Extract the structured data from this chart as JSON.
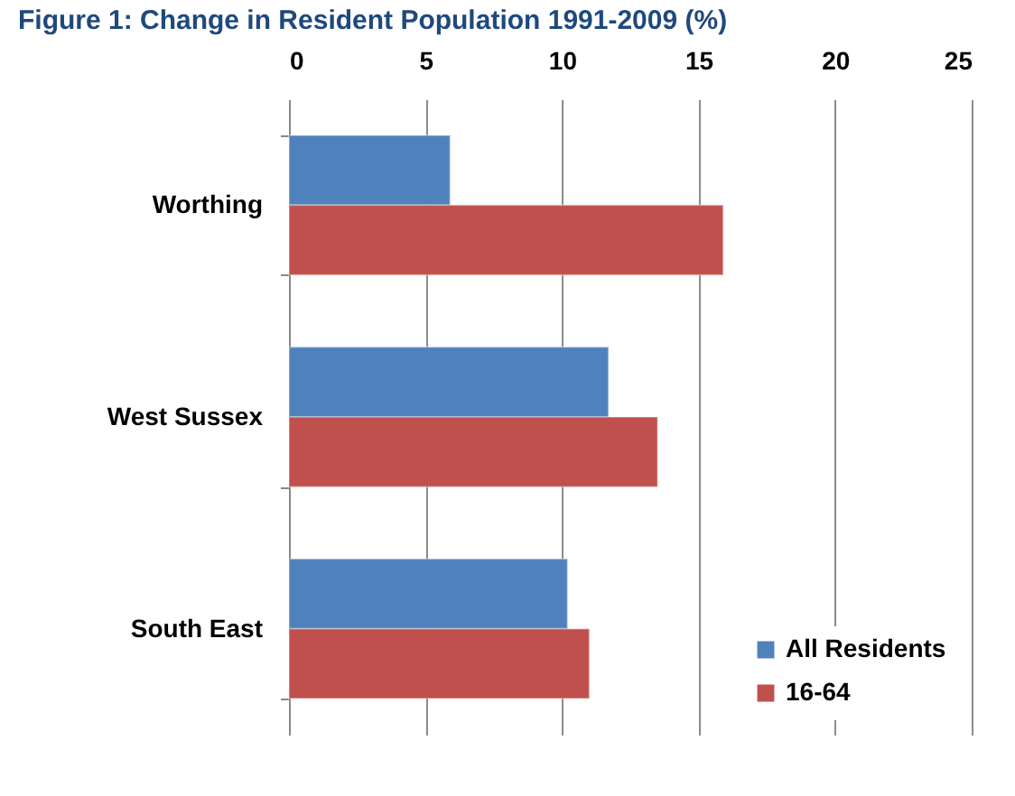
{
  "chart_data": {
    "type": "bar",
    "orientation": "horizontal",
    "title": "Figure 1: Change in Resident Population 1991-2009 (%)",
    "categories": [
      "Worthing",
      "West Sussex",
      "South East"
    ],
    "series": [
      {
        "name": "All Residents",
        "color": "#4f81bd",
        "values": [
          5.9,
          11.7,
          10.2
        ]
      },
      {
        "name": "16-64",
        "color": "#c0504d",
        "values": [
          15.9,
          13.5,
          11.0
        ]
      }
    ],
    "xlim": [
      0,
      25
    ],
    "xticks": [
      0,
      5,
      10,
      15,
      20,
      25
    ],
    "grid": "x",
    "legend": "bottom right"
  }
}
